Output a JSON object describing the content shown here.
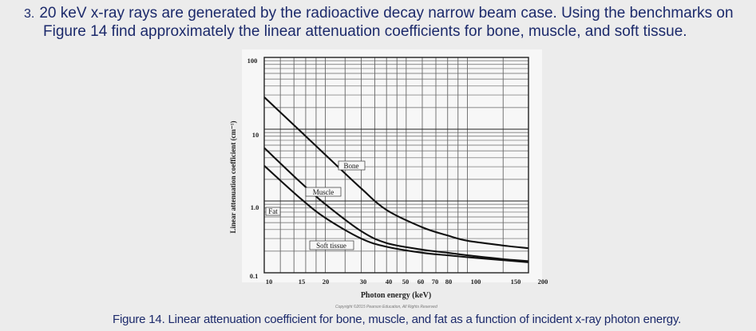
{
  "question": {
    "number": "3.",
    "line1": "20 keV  x-ray rays are generated by the radioactive decay narrow beam case. Using the benchmarks on",
    "line2": "Figure 14 find approximately the linear attenuation coefficients for bone, muscle, and soft tissue."
  },
  "chart_data": {
    "type": "line",
    "title": "",
    "xlabel": "Photon energy (keV)",
    "ylabel": "Linear attenuation coefficient (cm⁻¹)",
    "x_scale": "log",
    "y_scale": "log",
    "xlim": [
      10,
      200
    ],
    "ylim": [
      0.1,
      100
    ],
    "x_ticks": [
      "10",
      "15",
      "20",
      "30",
      "40",
      "50",
      "60",
      "70",
      "80",
      "100",
      "150",
      "200"
    ],
    "y_ticks": [
      "0.1",
      "1.0",
      "10",
      "100"
    ],
    "grid": true,
    "series": [
      {
        "name": "Bone",
        "x": [
          10,
          15,
          20,
          30,
          40,
          60,
          80,
          100,
          150,
          200
        ],
        "y": [
          28,
          9.5,
          4.4,
          1.5,
          0.75,
          0.43,
          0.33,
          0.28,
          0.24,
          0.22
        ]
      },
      {
        "name": "Muscle",
        "x": [
          10,
          15,
          20,
          30,
          40,
          60,
          80,
          100,
          150,
          200
        ],
        "y": [
          5.5,
          1.85,
          0.9,
          0.38,
          0.26,
          0.21,
          0.19,
          0.175,
          0.155,
          0.145
        ]
      },
      {
        "name": "Fat",
        "x": [
          10,
          15,
          20,
          30,
          40,
          60,
          80,
          100,
          150,
          200
        ],
        "y": [
          3.1,
          1.1,
          0.58,
          0.3,
          0.23,
          0.19,
          0.175,
          0.165,
          0.15,
          0.14
        ]
      }
    ],
    "annotations": [
      "Bone",
      "Muscle",
      "Fat",
      "Soft tissue"
    ]
  },
  "caption": "Figure 14. Linear attenuation coefficient for bone, muscle, and fat as a function of incident x-ray photon energy.",
  "copyright": "Copyright ©2015 Pearson Education, All Rights Reserved"
}
